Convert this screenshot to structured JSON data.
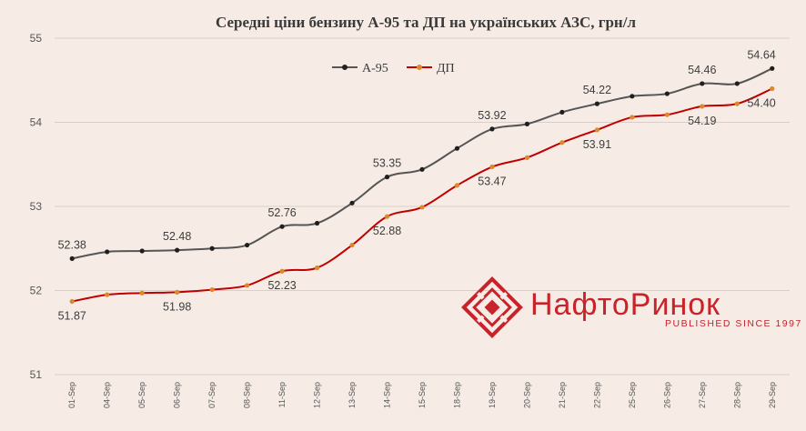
{
  "chart_data": {
    "type": "line",
    "title": "Середні ціни бензину А-95 та ДП на українських АЗС, грн/л",
    "categories": [
      "01-Sep",
      "04-Sep",
      "05-Sep",
      "06-Sep",
      "07-Sep",
      "08-Sep",
      "11-Sep",
      "12-Sep",
      "13-Sep",
      "14-Sep",
      "15-Sep",
      "18-Sep",
      "19-Sep",
      "20-Sep",
      "21-Sep",
      "22-Sep",
      "25-Sep",
      "26-Sep",
      "27-Sep",
      "28-Sep",
      "29-Sep"
    ],
    "ylim": [
      51,
      55
    ],
    "yticks": [
      51,
      52,
      53,
      54,
      55
    ],
    "legend_position": "top-center",
    "series": [
      {
        "name": "А-95",
        "color": "#555555",
        "values": [
          52.38,
          52.46,
          52.47,
          52.48,
          52.5,
          52.54,
          52.76,
          52.8,
          53.04,
          53.35,
          53.44,
          53.69,
          53.92,
          53.98,
          54.12,
          54.22,
          54.31,
          54.34,
          54.46,
          54.46,
          54.64
        ],
        "labels": {
          "0": "52.38",
          "3": "52.48",
          "6": "52.76",
          "9": "53.35",
          "12": "53.92",
          "15": "54.22",
          "18": "54.46",
          "20": "54.64"
        }
      },
      {
        "name": "ДП",
        "color": "#c00000",
        "values": [
          51.87,
          51.95,
          51.97,
          51.98,
          52.01,
          52.06,
          52.23,
          52.27,
          52.54,
          52.88,
          52.99,
          53.25,
          53.47,
          53.58,
          53.76,
          53.91,
          54.06,
          54.09,
          54.19,
          54.22,
          54.4
        ],
        "labels": {
          "0": "51.87",
          "3": "51.98",
          "6": "52.23",
          "9": "52.88",
          "12": "53.47",
          "15": "53.91",
          "18": "54.19",
          "20": "54.40"
        }
      }
    ]
  },
  "brand": {
    "name": "НафтоРинок",
    "tagline": "PUBLISHED SINCE 1997"
  }
}
